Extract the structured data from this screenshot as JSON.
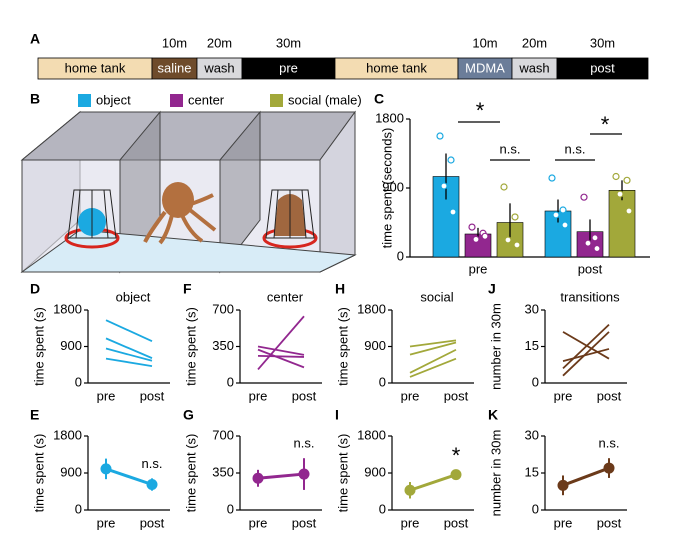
{
  "timeline": {
    "panel": "A",
    "segments": [
      {
        "label": "home tank",
        "color": "#f3dcb2",
        "text_color": "#000"
      },
      {
        "label": "saline",
        "duration": "10m",
        "color": "#6e4b2b",
        "text_color": "#fff"
      },
      {
        "label": "wash",
        "duration": "20m",
        "color": "#d9d9dc",
        "text_color": "#000"
      },
      {
        "label": "pre",
        "duration": "30m",
        "color": "#000000",
        "text_color": "#fff"
      },
      {
        "label": "home tank",
        "color": "#f3dcb2",
        "text_color": "#000"
      },
      {
        "label": "MDMA",
        "duration": "10m",
        "color": "#6b7d99",
        "text_color": "#fff"
      },
      {
        "label": "wash",
        "duration": "20m",
        "color": "#d9d9dc",
        "text_color": "#000"
      },
      {
        "label": "post",
        "duration": "30m",
        "color": "#000000",
        "text_color": "#fff"
      }
    ]
  },
  "illustration": {
    "panel": "B"
  },
  "chart_data": [
    {
      "type": "bar",
      "panel": "C",
      "ylabel": "time spent (seconds)",
      "categories": [
        "pre",
        "post"
      ],
      "ylim": [
        0,
        1800
      ],
      "yticks": [
        0,
        900,
        1800
      ],
      "series": [
        {
          "name": "object",
          "color": "#1ba9e1",
          "values": [
            1050,
            600
          ],
          "errors": [
            300,
            150
          ],
          "points": [
            [
              1578,
              1265,
              926,
              587
            ],
            [
              1030,
              613,
              548,
              417
            ]
          ]
        },
        {
          "name": "center",
          "color": "#92278f",
          "values": [
            300,
            330
          ],
          "errors": [
            80,
            160
          ],
          "points": [
            [
              390,
              310,
              230,
              270
            ],
            [
              780,
              250,
              180,
              110
            ]
          ]
        },
        {
          "name": "social (male)",
          "color": "#a2a83a",
          "values": [
            450,
            870
          ],
          "errors": [
            250,
            130
          ],
          "points": [
            [
              913,
              522,
              222,
              157
            ],
            [
              1050,
              1000,
              820,
              600
            ]
          ]
        }
      ],
      "annotations": [
        "*",
        "n.s.",
        "n.s.",
        "*"
      ]
    },
    {
      "type": "paired",
      "panel": "D",
      "title": "object",
      "ylabel": "time spent (s)",
      "categories": [
        "pre",
        "post"
      ],
      "ylim": [
        0,
        1800
      ],
      "yticks": [
        0,
        900,
        1800
      ],
      "color": "#1ba9e1",
      "series": [
        {
          "values": [
            1550,
            1030
          ]
        },
        {
          "values": [
            1100,
            613
          ]
        },
        {
          "values": [
            850,
            548
          ]
        },
        {
          "values": [
            600,
            417
          ]
        }
      ]
    },
    {
      "type": "paired",
      "panel": "F",
      "title": "center",
      "ylabel": "time spent (s)",
      "categories": [
        "pre",
        "post"
      ],
      "ylim": [
        0,
        700
      ],
      "yticks": [
        0,
        350,
        700
      ],
      "color": "#92278f",
      "series": [
        {
          "values": [
            130,
            640
          ]
        },
        {
          "values": [
            350,
            270
          ]
        },
        {
          "values": [
            320,
            150
          ]
        },
        {
          "values": [
            260,
            250
          ]
        }
      ]
    },
    {
      "type": "paired",
      "panel": "H",
      "title": "social",
      "ylabel": "time spent (s)",
      "categories": [
        "pre",
        "post"
      ],
      "ylim": [
        0,
        1800
      ],
      "yticks": [
        0,
        900,
        1800
      ],
      "color": "#a2a83a",
      "series": [
        {
          "values": [
            900,
            1050
          ]
        },
        {
          "values": [
            700,
            1000
          ]
        },
        {
          "values": [
            250,
            820
          ]
        },
        {
          "values": [
            150,
            600
          ]
        }
      ]
    },
    {
      "type": "paired",
      "panel": "J",
      "title": "transitions",
      "ylabel": "number in 30m",
      "categories": [
        "pre",
        "post"
      ],
      "ylim": [
        0,
        30
      ],
      "yticks": [
        0,
        15,
        30
      ],
      "color": "#6b3a1a",
      "series": [
        {
          "values": [
            21,
            10
          ]
        },
        {
          "values": [
            9,
            14
          ]
        },
        {
          "values": [
            6,
            24
          ]
        },
        {
          "values": [
            3,
            21
          ]
        }
      ]
    },
    {
      "type": "meanline",
      "panel": "E",
      "ylabel": "time spent (s)",
      "categories": [
        "pre",
        "post"
      ],
      "ylim": [
        0,
        1800
      ],
      "yticks": [
        0,
        900,
        1800
      ],
      "color": "#1ba9e1",
      "values": [
        1000,
        620
      ],
      "errors": [
        250,
        150
      ],
      "annotation": "n.s."
    },
    {
      "type": "meanline",
      "panel": "G",
      "ylabel": "time spent (s)",
      "categories": [
        "pre",
        "post"
      ],
      "ylim": [
        0,
        700
      ],
      "yticks": [
        0,
        350,
        700
      ],
      "color": "#92278f",
      "values": [
        300,
        340
      ],
      "errors": [
        80,
        150
      ],
      "annotation": "n.s."
    },
    {
      "type": "meanline",
      "panel": "I",
      "ylabel": "time spent (s)",
      "categories": [
        "pre",
        "post"
      ],
      "ylim": [
        0,
        1800
      ],
      "yticks": [
        0,
        900,
        1800
      ],
      "color": "#a2a83a",
      "values": [
        480,
        860
      ],
      "errors": [
        200,
        80
      ],
      "annotation": "*"
    },
    {
      "type": "meanline",
      "panel": "K",
      "ylabel": "number in 30m",
      "categories": [
        "pre",
        "post"
      ],
      "ylim": [
        0,
        30
      ],
      "yticks": [
        0,
        15,
        30
      ],
      "color": "#6b3a1a",
      "values": [
        10,
        17
      ],
      "errors": [
        4,
        4
      ],
      "annotation": "n.s."
    }
  ]
}
